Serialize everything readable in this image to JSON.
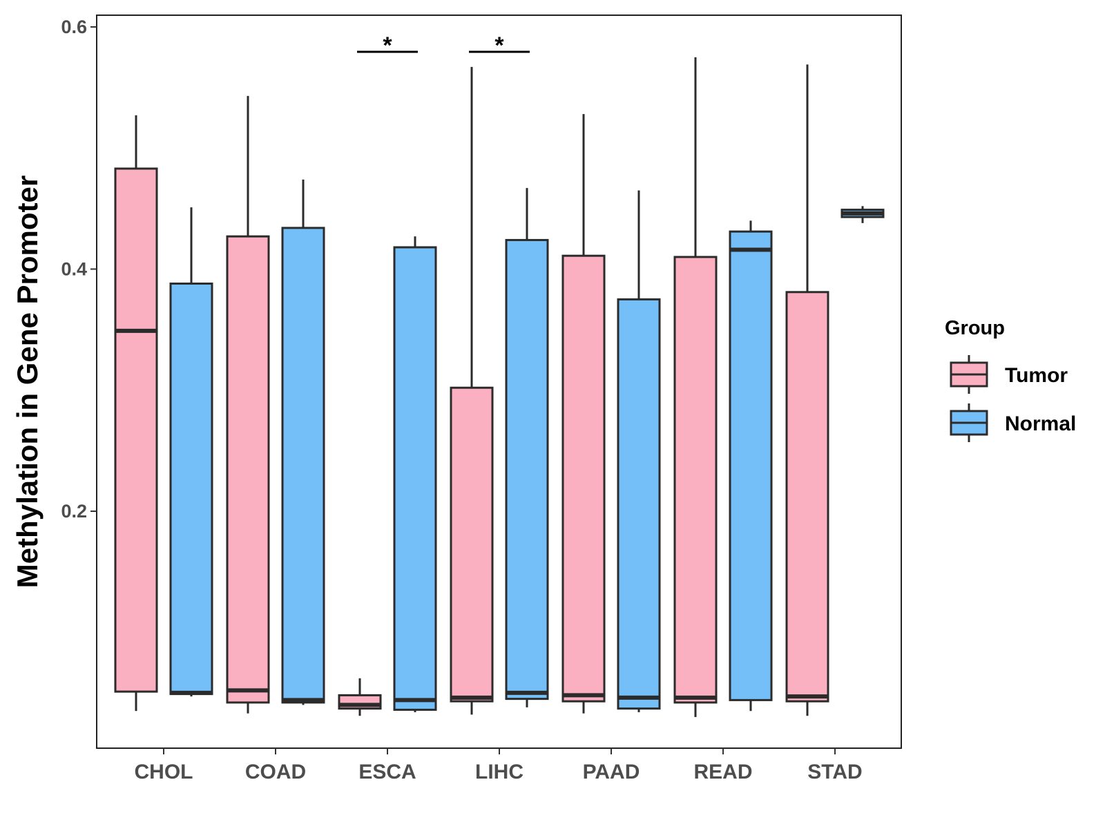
{
  "chart_data": {
    "type": "boxplot",
    "title": "",
    "xlabel": "",
    "ylabel": "Methylation in Gene Promoter",
    "ylim": [
      0.0,
      0.61
    ],
    "yticks": [
      0.2,
      0.4,
      0.6
    ],
    "ytick_labels": [
      "0.2",
      "0.4",
      "0.6"
    ],
    "categories": [
      "CHOL",
      "COAD",
      "ESCA",
      "LIHC",
      "PAAD",
      "READ",
      "STAD"
    ],
    "legend": {
      "title": "Group",
      "position": "right",
      "entries": [
        {
          "name": "Tumor",
          "color": "#fbb0c2"
        },
        {
          "name": "Normal",
          "color": "#74bff8"
        }
      ]
    },
    "series": [
      {
        "name": "Tumor",
        "color": "#fbb0c2",
        "boxes": [
          {
            "category": "CHOL",
            "min": 0.035,
            "q1": 0.051,
            "median": 0.349,
            "q3": 0.483,
            "max": 0.527
          },
          {
            "category": "COAD",
            "min": 0.033,
            "q1": 0.042,
            "median": 0.052,
            "q3": 0.427,
            "max": 0.543
          },
          {
            "category": "ESCA",
            "min": 0.031,
            "q1": 0.037,
            "median": 0.04,
            "q3": 0.048,
            "max": 0.062
          },
          {
            "category": "LIHC",
            "min": 0.032,
            "q1": 0.043,
            "median": 0.046,
            "q3": 0.302,
            "max": 0.567
          },
          {
            "category": "PAAD",
            "min": 0.033,
            "q1": 0.043,
            "median": 0.048,
            "q3": 0.411,
            "max": 0.528
          },
          {
            "category": "READ",
            "min": 0.03,
            "q1": 0.042,
            "median": 0.046,
            "q3": 0.41,
            "max": 0.575
          },
          {
            "category": "STAD",
            "min": 0.031,
            "q1": 0.043,
            "median": 0.047,
            "q3": 0.381,
            "max": 0.569
          }
        ]
      },
      {
        "name": "Normal",
        "color": "#74bff8",
        "boxes": [
          {
            "category": "CHOL",
            "min": 0.047,
            "q1": 0.049,
            "median": 0.05,
            "q3": 0.388,
            "max": 0.451
          },
          {
            "category": "COAD",
            "min": 0.04,
            "q1": 0.042,
            "median": 0.044,
            "q3": 0.434,
            "max": 0.474
          },
          {
            "category": "ESCA",
            "min": 0.034,
            "q1": 0.036,
            "median": 0.044,
            "q3": 0.418,
            "max": 0.427
          },
          {
            "category": "LIHC",
            "min": 0.038,
            "q1": 0.045,
            "median": 0.05,
            "q3": 0.424,
            "max": 0.467
          },
          {
            "category": "PAAD",
            "min": 0.034,
            "q1": 0.037,
            "median": 0.046,
            "q3": 0.375,
            "max": 0.465
          },
          {
            "category": "READ",
            "min": 0.035,
            "q1": 0.044,
            "median": 0.416,
            "q3": 0.431,
            "max": 0.44
          },
          {
            "category": "STAD",
            "min": 0.438,
            "q1": 0.443,
            "median": 0.446,
            "q3": 0.449,
            "max": 0.452
          }
        ]
      }
    ],
    "annotations": [
      {
        "category": "ESCA",
        "label": "*"
      },
      {
        "category": "LIHC",
        "label": "*"
      }
    ]
  }
}
